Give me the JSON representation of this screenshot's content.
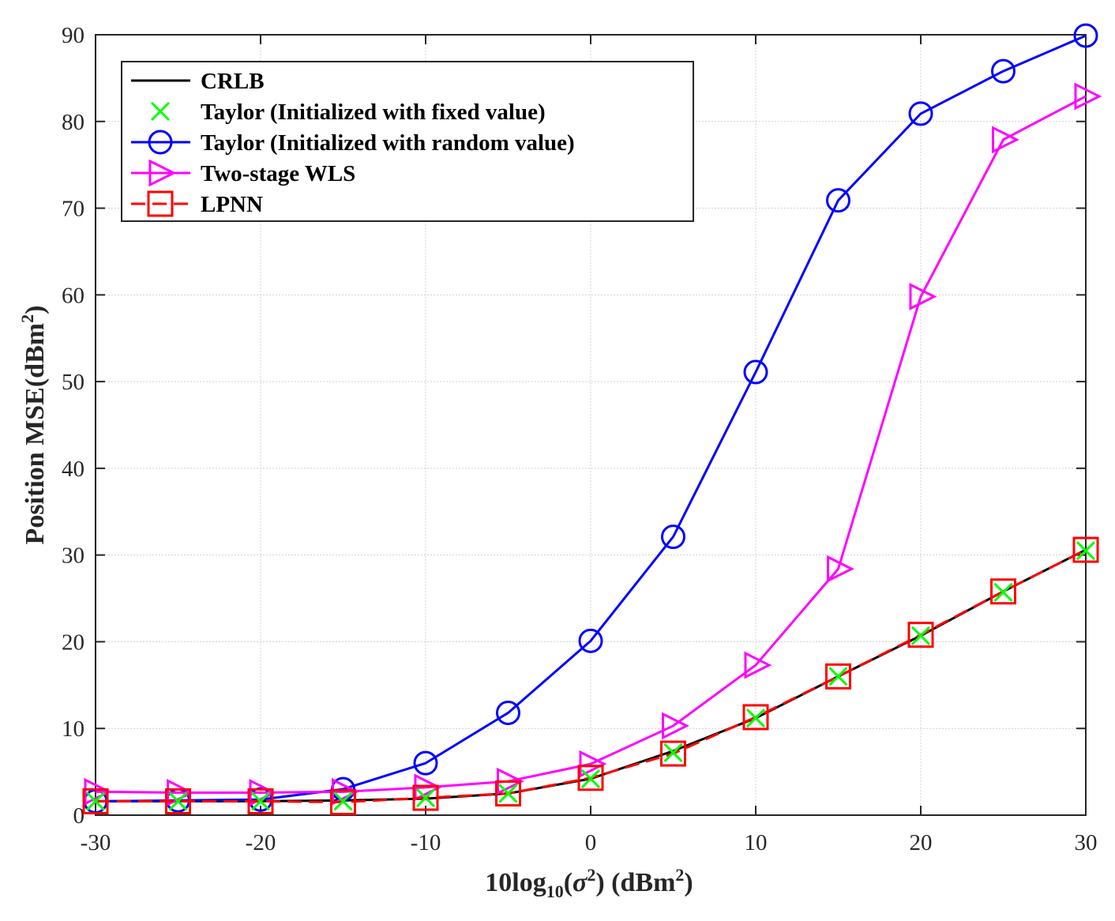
{
  "chart_data": {
    "type": "line",
    "title": "",
    "xlabel": {
      "prefix": "10log",
      "sub": "10",
      "open": "(",
      "sigma": "σ",
      "sup1": "2",
      "mid": ") (dBm",
      "sup2": "2",
      "close": ")"
    },
    "ylabel": {
      "text": "Position MSE(dBm",
      "sup": "2",
      "close": ")"
    },
    "x": [
      -30,
      -25,
      -20,
      -15,
      -10,
      -5,
      0,
      5,
      10,
      15,
      20,
      25,
      30
    ],
    "xlim": [
      -30,
      30
    ],
    "ylim": [
      0,
      90
    ],
    "xticks": [
      -30,
      -20,
      -10,
      0,
      10,
      20,
      30
    ],
    "xtick_labels": [
      "-30",
      "-20",
      "-10",
      "0",
      "10",
      "20",
      "30"
    ],
    "yticks": [
      0,
      10,
      20,
      30,
      40,
      50,
      60,
      70,
      80,
      90
    ],
    "ytick_labels": [
      "0",
      "10",
      "20",
      "30",
      "40",
      "50",
      "60",
      "70",
      "80",
      "90"
    ],
    "grid": true,
    "legend_position": "top-left",
    "series": [
      {
        "name": "CRLB",
        "color": "#000000",
        "marker": "none",
        "dash": "solid",
        "values": [
          1.6,
          1.6,
          1.6,
          1.7,
          1.9,
          2.5,
          4.2,
          7.4,
          11.2,
          16.0,
          20.7,
          25.8,
          30.6
        ]
      },
      {
        "name": "Taylor (Initialized with fixed value)",
        "color": "#00ff00",
        "marker": "x",
        "dash": "none",
        "values": [
          1.6,
          1.6,
          1.6,
          1.6,
          2.0,
          2.5,
          4.2,
          7.2,
          11.2,
          16.0,
          20.7,
          25.7,
          30.5
        ]
      },
      {
        "name": "Taylor (Initialized with random value)",
        "color": "#0000ff",
        "marker": "circle",
        "dash": "solid",
        "values": [
          1.6,
          1.7,
          1.8,
          3.0,
          6.0,
          11.8,
          20.1,
          32.1,
          51.1,
          70.9,
          80.9,
          85.8,
          89.9
        ]
      },
      {
        "name": "Two-stage WLS",
        "color": "#ff00ff",
        "marker": "triangle-right",
        "dash": "solid",
        "values": [
          2.7,
          2.6,
          2.6,
          2.7,
          3.2,
          3.9,
          5.9,
          10.3,
          17.3,
          28.4,
          59.8,
          77.9,
          82.9
        ]
      },
      {
        "name": "LPNN",
        "color": "#ff0000",
        "marker": "square",
        "dash": "dashed",
        "values": [
          1.6,
          1.6,
          1.6,
          1.5,
          2.0,
          2.5,
          4.3,
          7.1,
          11.3,
          16.0,
          20.8,
          25.8,
          30.6
        ]
      }
    ]
  }
}
